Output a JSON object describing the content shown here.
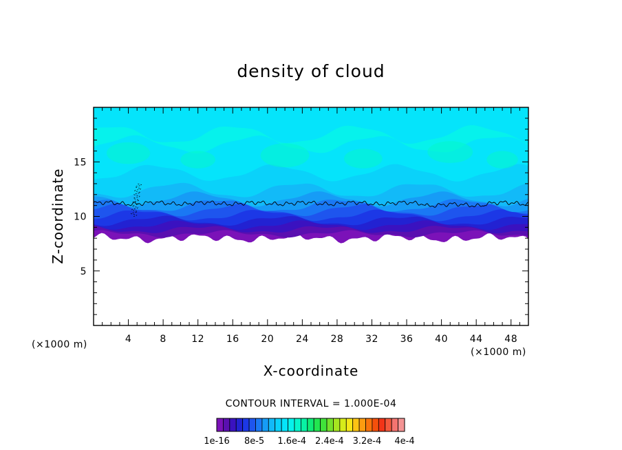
{
  "chart_data": {
    "type": "heatmap",
    "title": "density of cloud",
    "xlabel": "X-coordinate",
    "ylabel": "Z-coordinate",
    "x_unit": "(×1000 m)",
    "y_unit": "(×1000 m)",
    "xlim": [
      0,
      50
    ],
    "ylim": [
      0,
      20
    ],
    "x_ticks": [
      "4",
      "8",
      "12",
      "16",
      "20",
      "24",
      "28",
      "32",
      "36",
      "40",
      "44",
      "48"
    ],
    "x_tick_values": [
      4,
      8,
      12,
      16,
      20,
      24,
      28,
      32,
      36,
      40,
      44,
      48
    ],
    "y_ticks": [
      "5",
      "10",
      "15"
    ],
    "y_tick_values": [
      5,
      10,
      15
    ],
    "contour_interval_text": "CONTOUR INTERVAL = 1.000E-04",
    "contour_line_level": 0.0001,
    "contour_line_mean_z": 11.2,
    "cloud_base_z": 8.0,
    "colorbar": {
      "colors": [
        "#7b12b8",
        "#5a0fb0",
        "#3a12c0",
        "#2222d2",
        "#1c38e6",
        "#1e55ee",
        "#1a78f4",
        "#169cf6",
        "#12baf8",
        "#0ad2fa",
        "#05e4fb",
        "#06f2ec",
        "#06f6cc",
        "#08f2a4",
        "#10ec76",
        "#22e650",
        "#40e23a",
        "#74e22c",
        "#a6e620",
        "#d6ec1a",
        "#f5e818",
        "#fcc414",
        "#fc9c10",
        "#f8740c",
        "#f4500c",
        "#f23418",
        "#f4583c",
        "#f47470",
        "#f49494"
      ],
      "labels": [
        "1e-16",
        "8e-5",
        "1.6e-4",
        "2.4e-4",
        "3.2e-4",
        "4e-4"
      ]
    },
    "profile": [
      {
        "z": 8.0,
        "level": 0
      },
      {
        "z": 8.4,
        "level": 1
      },
      {
        "z": 8.8,
        "level": 2
      },
      {
        "z": 9.2,
        "level": 3
      },
      {
        "z": 9.6,
        "level": 4
      },
      {
        "z": 10.1,
        "level": 5
      },
      {
        "z": 10.6,
        "level": 6
      },
      {
        "z": 11.0,
        "level": 7
      },
      {
        "z": 11.6,
        "level": 8
      },
      {
        "z": 12.4,
        "level": 9
      },
      {
        "z": 14.0,
        "level": 10
      },
      {
        "z": 16.6,
        "level": 11
      },
      {
        "z": 17.5,
        "level": 10
      }
    ]
  }
}
